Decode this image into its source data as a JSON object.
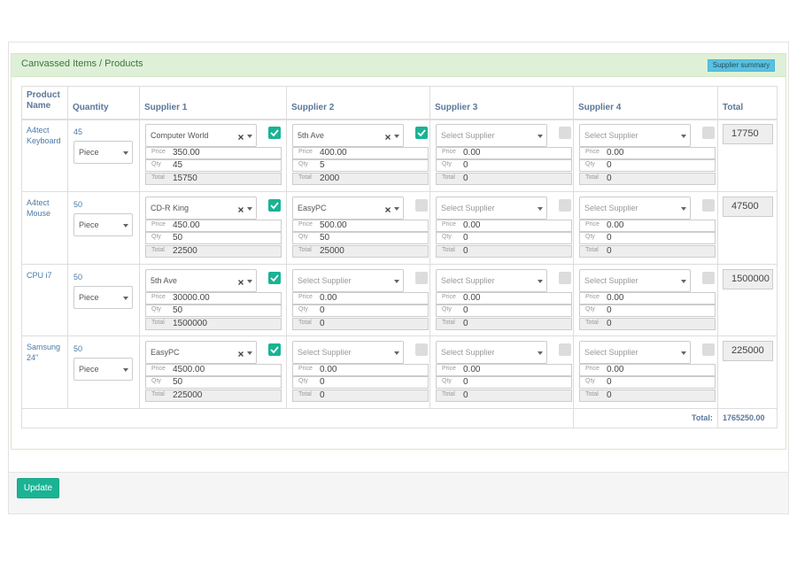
{
  "panel_title": "Canvassed Items / Products",
  "summary_button": "Supplier summary",
  "headers": [
    "Product Name",
    "Quantity",
    "Supplier 1",
    "Supplier 2",
    "Supplier 3",
    "Supplier 4",
    "Total"
  ],
  "field_labels": [
    "Price",
    "Qty",
    "Total"
  ],
  "rows": [
    {
      "product": "A4tect Keyboard",
      "quantity": "45",
      "unit": "Piece",
      "total": "17750",
      "suppliers": [
        {
          "supplier": "Computer World",
          "selected": true,
          "checked": true,
          "price": "350.00",
          "qty": "45",
          "total": "15750"
        },
        {
          "supplier": "5th Ave",
          "selected": true,
          "checked": true,
          "price": "400.00",
          "qty": "5",
          "total": "2000"
        },
        {
          "supplier": "Select Supplier",
          "selected": false,
          "checked": false,
          "price": "0.00",
          "qty": "0",
          "total": "0"
        },
        {
          "supplier": "Select Supplier",
          "selected": false,
          "checked": false,
          "price": "0.00",
          "qty": "0",
          "total": "0"
        }
      ]
    },
    {
      "product": "A4tect Mouse",
      "quantity": "50",
      "unit": "Piece",
      "total": "47500",
      "suppliers": [
        {
          "supplier": "CD-R King",
          "selected": true,
          "checked": true,
          "price": "450.00",
          "qty": "50",
          "total": "22500"
        },
        {
          "supplier": "EasyPC",
          "selected": true,
          "checked": false,
          "price": "500.00",
          "qty": "50",
          "total": "25000"
        },
        {
          "supplier": "Select Supplier",
          "selected": false,
          "checked": false,
          "price": "0.00",
          "qty": "0",
          "total": "0"
        },
        {
          "supplier": "Select Supplier",
          "selected": false,
          "checked": false,
          "price": "0.00",
          "qty": "0",
          "total": "0"
        }
      ]
    },
    {
      "product": "CPU i7",
      "quantity": "50",
      "unit": "Piece",
      "total": "1500000",
      "suppliers": [
        {
          "supplier": "5th Ave",
          "selected": true,
          "checked": true,
          "price": "30000.00",
          "qty": "50",
          "total": "1500000"
        },
        {
          "supplier": "Select Supplier",
          "selected": false,
          "checked": false,
          "price": "0.00",
          "qty": "0",
          "total": "0"
        },
        {
          "supplier": "Select Supplier",
          "selected": false,
          "checked": false,
          "price": "0.00",
          "qty": "0",
          "total": "0"
        },
        {
          "supplier": "Select Supplier",
          "selected": false,
          "checked": false,
          "price": "0.00",
          "qty": "0",
          "total": "0"
        }
      ]
    },
    {
      "product": "Samsung 24\"",
      "quantity": "50",
      "unit": "Piece",
      "total": "225000",
      "suppliers": [
        {
          "supplier": "EasyPC",
          "selected": true,
          "checked": true,
          "price": "4500.00",
          "qty": "50",
          "total": "225000"
        },
        {
          "supplier": "Select Supplier",
          "selected": false,
          "checked": false,
          "price": "0.00",
          "qty": "0",
          "total": "0"
        },
        {
          "supplier": "Select Supplier",
          "selected": false,
          "checked": false,
          "price": "0.00",
          "qty": "0",
          "total": "0"
        },
        {
          "supplier": "Select Supplier",
          "selected": false,
          "checked": false,
          "price": "0.00",
          "qty": "0",
          "total": "0"
        }
      ]
    }
  ],
  "grand_total_label": "Total:",
  "grand_total": "1765250.00",
  "update_button": "Update"
}
